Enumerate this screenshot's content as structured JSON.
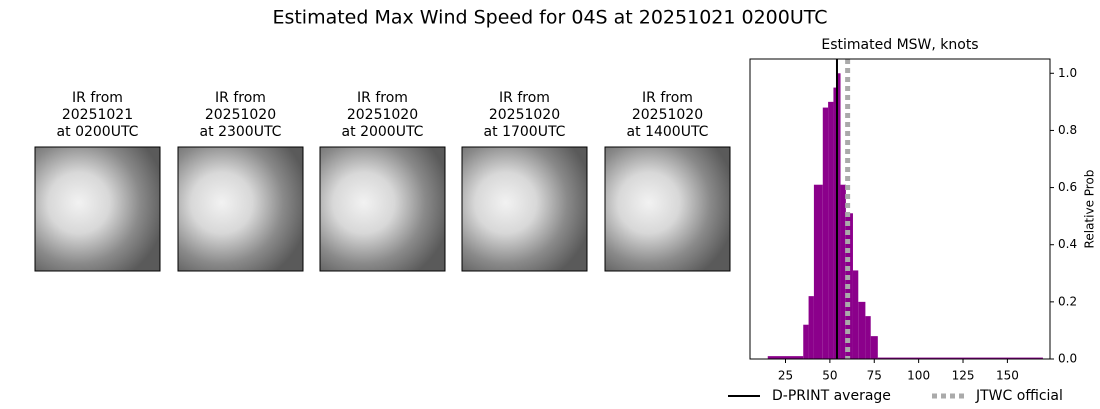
{
  "title": "Estimated Max Wind Speed for 04S at 20251021 0200UTC",
  "panels": [
    {
      "title_lines": [
        "IR from",
        "20251021",
        "at 0200UTC"
      ]
    },
    {
      "title_lines": [
        "IR from",
        "20251020",
        "at 2300UTC"
      ]
    },
    {
      "title_lines": [
        "IR from",
        "20251020",
        "at 2000UTC"
      ]
    },
    {
      "title_lines": [
        "IR from",
        "20251020",
        "at 1700UTC"
      ]
    },
    {
      "title_lines": [
        "IR from",
        "20251020",
        "at 1400UTC"
      ]
    }
  ],
  "chart_data": {
    "type": "histogram",
    "title": "Estimated MSW, knots",
    "y_label": "Relative Prob",
    "bins": [
      15,
      35,
      38,
      41,
      46,
      49,
      52,
      54,
      56,
      59,
      63,
      66,
      70,
      73,
      77,
      170
    ],
    "values": [
      0.01,
      0.12,
      0.22,
      0.61,
      0.88,
      0.9,
      0.95,
      1.0,
      0.61,
      0.51,
      0.31,
      0.2,
      0.15,
      0.08,
      0.005
    ],
    "color": "#8b008b",
    "xlim": [
      5,
      174
    ],
    "xticks": [
      25,
      50,
      75,
      100,
      125,
      150
    ],
    "ylim": [
      0,
      1.05
    ],
    "yticks": [
      {
        "value": 0,
        "label": "0.0"
      },
      0.2,
      0.4,
      0.6,
      0.8,
      {
        "value": 1,
        "label": "1.0"
      }
    ],
    "lines": [
      {
        "name": "D-PRINT average",
        "value": 54,
        "color": "#000000",
        "dashed": false
      },
      {
        "name": "JTWC official",
        "value": 60,
        "color": "#aaaaaa",
        "dashed": true
      }
    ]
  }
}
